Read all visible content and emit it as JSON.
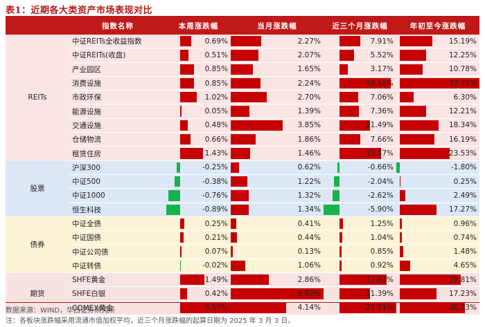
{
  "title": "表1：近期各大类资产市场表现对比",
  "headers": [
    "指数名称",
    "本周涨跌幅",
    "当月涨跌幅",
    "近三个月涨跌幅",
    "年初至今涨跌幅"
  ],
  "groups": [
    {
      "category": "REITs",
      "style": "reits",
      "rows": [
        {
          "name": "中证REITs全收益指数",
          "vals": [
            0.69,
            2.27,
            7.91,
            15.19
          ],
          "labels": [
            "0.69%",
            "2.27%",
            "7.91%",
            "15.19%"
          ]
        },
        {
          "name": "中证REITs(收盘)",
          "vals": [
            0.51,
            2.07,
            5.52,
            12.25
          ],
          "labels": [
            "0.51%",
            "2.07%",
            "5.52%",
            "12.25%"
          ]
        },
        {
          "name": "产业园区",
          "vals": [
            0.85,
            1.65,
            3.17,
            10.78
          ],
          "labels": [
            "0.85%",
            "1.65%",
            "3.17%",
            "10.78%"
          ]
        },
        {
          "name": "消费设施",
          "vals": [
            0.85,
            2.24,
            19.16,
            37.71
          ],
          "labels": [
            "0.85%",
            "2.24%",
            "19.16%",
            "37.71%"
          ]
        },
        {
          "name": "市政环保",
          "vals": [
            1.02,
            2.7,
            7.06,
            6.3
          ],
          "labels": [
            "1.02%",
            "2.70%",
            "7.06%",
            "6.30%"
          ]
        },
        {
          "name": "能源设施",
          "vals": [
            0.05,
            1.39,
            7.36,
            12.21
          ],
          "labels": [
            "0.05%",
            "1.39%",
            "7.36%",
            "12.21%"
          ]
        },
        {
          "name": "交通设施",
          "vals": [
            0.48,
            3.85,
            11.49,
            18.34
          ],
          "labels": [
            "0.48%",
            "3.85%",
            "11.49%",
            "18.34%"
          ]
        },
        {
          "name": "仓储物流",
          "vals": [
            0.66,
            1.86,
            7.66,
            16.19
          ],
          "labels": [
            "0.66%",
            "1.86%",
            "7.66%",
            "16.19%"
          ]
        },
        {
          "name": "租赁住房",
          "vals": [
            1.43,
            1.46,
            15.57,
            23.53
          ],
          "labels": [
            "1.43%",
            "1.46%",
            "15.57%",
            "23.53%"
          ]
        }
      ]
    },
    {
      "category": "股票",
      "style": "stock",
      "rows": [
        {
          "name": "沪深300",
          "vals": [
            -0.25,
            0.62,
            -0.66,
            -1.8
          ],
          "labels": [
            "-0.25%",
            "0.62%",
            "-0.66%",
            "-1.80%"
          ]
        },
        {
          "name": "中证500",
          "vals": [
            -0.38,
            1.22,
            -2.04,
            0.25
          ],
          "labels": [
            "-0.38%",
            "1.22%",
            "-2.04%",
            "0.25%"
          ]
        },
        {
          "name": "中证1000",
          "vals": [
            -0.76,
            1.32,
            -2.62,
            2.49
          ],
          "labels": [
            "-0.76%",
            "1.32%",
            "-2.62%",
            "2.49%"
          ]
        },
        {
          "name": "恒生科技",
          "vals": [
            -0.89,
            1.34,
            -5.9,
            17.27
          ],
          "labels": [
            "-0.89%",
            "1.34%",
            "-5.90%",
            "17.27%"
          ]
        }
      ]
    },
    {
      "category": "债券",
      "style": "bond",
      "rows": [
        {
          "name": "中证全债",
          "vals": [
            0.25,
            0.41,
            1.25,
            0.96
          ],
          "labels": [
            "0.25%",
            "0.41%",
            "1.25%",
            "0.96%"
          ]
        },
        {
          "name": "中证国债",
          "vals": [
            0.21,
            0.44,
            1.04,
            0.74
          ],
          "labels": [
            "0.21%",
            "0.44%",
            "1.04%",
            "0.74%"
          ]
        },
        {
          "name": "中证公司债",
          "vals": [
            0.07,
            0.13,
            0.85,
            1.48
          ],
          "labels": [
            "0.07%",
            "0.13%",
            "0.85%",
            "1.48%"
          ]
        },
        {
          "name": "中证转债",
          "vals": [
            -0.02,
            1.06,
            0.92,
            4.65
          ],
          "labels": [
            "-0.02%",
            "1.06%",
            "0.92%",
            "4.65%"
          ]
        }
      ]
    },
    {
      "category": "期货",
      "style": "fut",
      "rows": [
        {
          "name": "SHFE黄金",
          "vals": [
            1.49,
            2.86,
            17.67,
            28.81
          ],
          "labels": [
            "1.49%",
            "2.86%",
            "17.67%",
            "28.81%"
          ]
        },
        {
          "name": "SHFE白银",
          "vals": [
            0.42,
            6.92,
            11.39,
            17.23
          ],
          "labels": [
            "0.42%",
            "6.92%",
            "11.39%",
            "17.23%"
          ]
        },
        {
          "name": "COMEX黄金",
          "vals": [
            3.17,
            4.14,
            21.21,
            30.73
          ],
          "labels": [
            "3.17%",
            "4.14%",
            "21.21%",
            "30.73%"
          ]
        }
      ]
    }
  ],
  "source": "数据来源：WIND，华西证券研究所",
  "note": "注：各板块涨跌幅采用流通市值加权平均，近三个月涨跌幅的起算日期为 2025 年 3 月 3 日。",
  "colors": {
    "positive": "#c60000",
    "negative": "#17b34a",
    "header": "#c0191a"
  }
}
